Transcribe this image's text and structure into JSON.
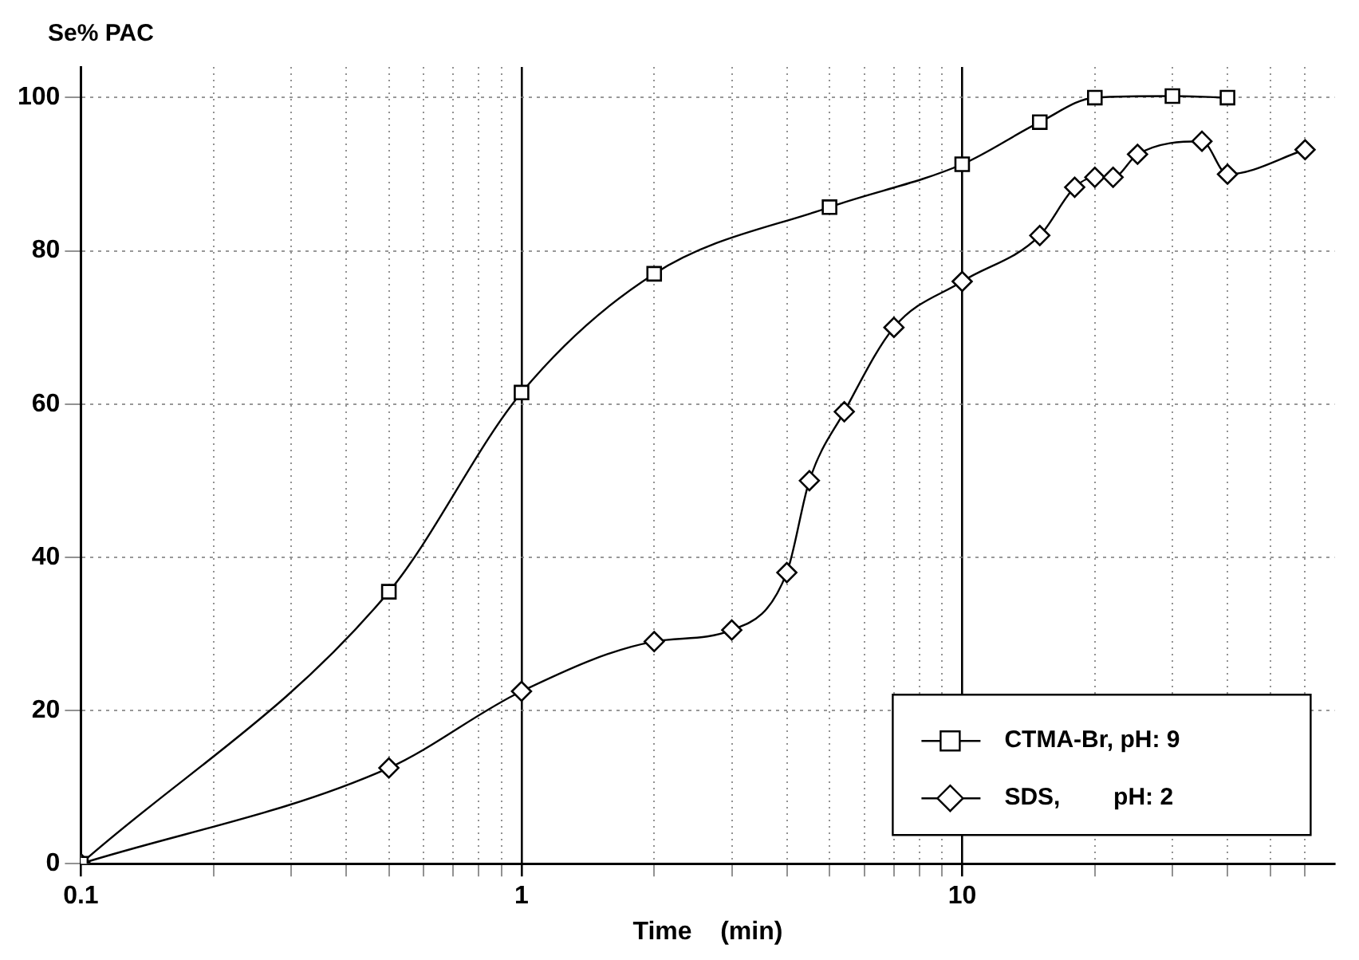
{
  "chart_data": {
    "type": "line",
    "ylabel": "Se% PAC",
    "xlabel": "Time    (min)",
    "log": "x",
    "grid": true,
    "legend": "bottom right",
    "line_style": "solid",
    "xlim": [
      0.1,
      70
    ],
    "ylim": [
      0,
      104
    ],
    "xticks": [
      0.1,
      {
        "value": 0.2,
        "label": null
      },
      {
        "value": 0.3,
        "label": null
      },
      {
        "value": 0.4,
        "label": null
      },
      {
        "value": 0.5,
        "label": null
      },
      {
        "value": 0.6,
        "label": null
      },
      {
        "value": 0.7,
        "label": null
      },
      {
        "value": 0.8,
        "label": null
      },
      {
        "value": 0.9,
        "label": null
      },
      1,
      {
        "value": 2,
        "label": null
      },
      {
        "value": 3,
        "label": null
      },
      {
        "value": 4,
        "label": null
      },
      {
        "value": 5,
        "label": null
      },
      {
        "value": 6,
        "label": null
      },
      {
        "value": 7,
        "label": null
      },
      {
        "value": 8,
        "label": null
      },
      {
        "value": 9,
        "label": null
      },
      10,
      {
        "value": 20,
        "label": null
      },
      {
        "value": 30,
        "label": null
      },
      {
        "value": 40,
        "label": null
      },
      {
        "value": 50,
        "label": null
      },
      {
        "value": 60,
        "label": null
      }
    ],
    "yticks": [
      0,
      20,
      40,
      60,
      80,
      100
    ],
    "series": [
      {
        "name": "CTMA-Br, pH: 9",
        "color": "#000000",
        "marker": "square",
        "x": [
          0.1,
          0.5,
          1,
          2,
          5,
          10,
          15,
          20,
          30,
          40
        ],
        "values": [
          0,
          35.5,
          61.5,
          77,
          85.7,
          91.3,
          96.8,
          100,
          100.2,
          100
        ]
      },
      {
        "name": "SDS,        pH: 2",
        "color": "#000000",
        "marker": "diamond",
        "x": [
          0.1,
          0.5,
          1,
          2,
          3,
          4,
          4.5,
          5.4,
          7,
          10,
          15,
          18,
          20,
          22,
          25,
          35,
          40,
          60
        ],
        "values": [
          0,
          12.5,
          22.5,
          29,
          30.5,
          38,
          50,
          59,
          70,
          76,
          82,
          88.3,
          89.6,
          89.6,
          92.6,
          94.3,
          90,
          93.2
        ]
      }
    ]
  }
}
